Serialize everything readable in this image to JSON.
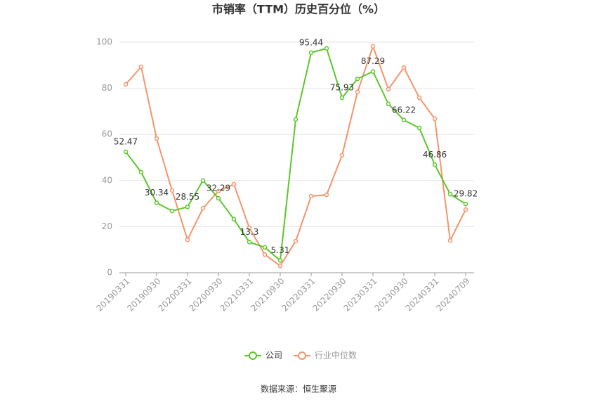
{
  "chart_data": {
    "type": "line",
    "title": "市销率（TTM）历史百分位（%）",
    "source": "数据来源：恒生聚源",
    "categories": [
      "20190331",
      null,
      "20190930",
      null,
      "20200331",
      null,
      "20200930",
      null,
      "20210331",
      null,
      "20210930",
      null,
      "20220331",
      null,
      "20220930",
      null,
      "20230331",
      null,
      "20230930",
      null,
      "20240331",
      null,
      "20240709"
    ],
    "series": [
      {
        "name": "公司",
        "color": "#5cc72c",
        "values": [
          52.47,
          43.6,
          30.34,
          26.8,
          28.55,
          40,
          32.29,
          23.2,
          13.3,
          11,
          5.31,
          66.5,
          95.44,
          97.3,
          75.93,
          84.1,
          87.29,
          73.2,
          66.22,
          62.8,
          46.86,
          34.1,
          29.82
        ]
      },
      {
        "name": "行业中位数",
        "color": "#f4956c",
        "values": [
          81.7,
          89.3,
          58.2,
          35.7,
          14.3,
          28,
          35.4,
          38.4,
          19.5,
          7.9,
          3,
          13.7,
          33.2,
          33.8,
          50.9,
          78.4,
          98.2,
          79.6,
          89,
          75.9,
          66.8,
          14,
          27.4
        ]
      }
    ],
    "ylim": [
      0,
      100
    ],
    "yticks": [
      0,
      20,
      40,
      60,
      80,
      100
    ],
    "grid": true
  }
}
